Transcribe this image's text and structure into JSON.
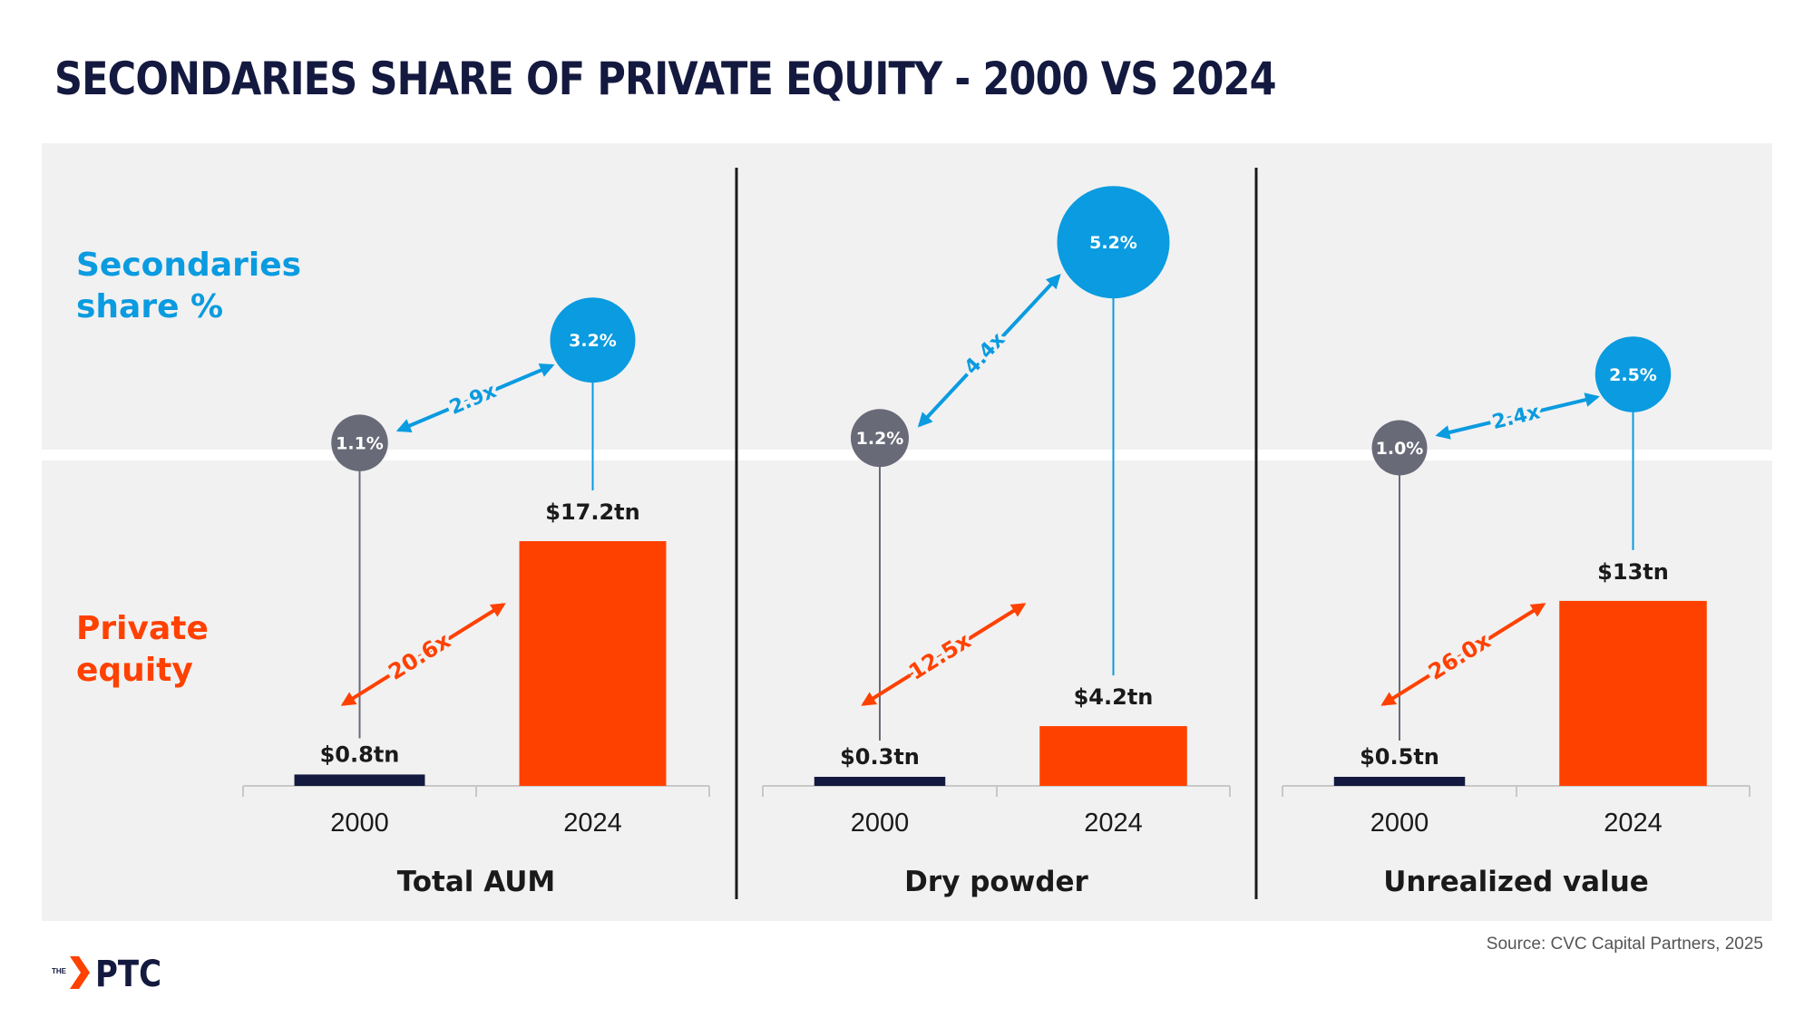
{
  "title": "SECONDARIES SHARE OF PRIVATE EQUITY - 2000 VS 2024",
  "source": "Source: CVC Capital Partners, 2025",
  "logo": {
    "prefix": "THE",
    "name": "PTC"
  },
  "row_labels": {
    "secondaries": [
      "Secondaries",
      "share %"
    ],
    "private_equity": [
      "Private",
      "equity"
    ]
  },
  "colors": {
    "navy": "#14193f",
    "orange": "#ff4100",
    "blue": "#0a9be0",
    "gray_circle": "#696a78",
    "panel_bg": "#f1f1f1"
  },
  "chart_data": [
    {
      "type": "bar",
      "title": "Total AUM",
      "categories": [
        "2000",
        "2024"
      ],
      "values": [
        0.8,
        17.2
      ],
      "value_labels": [
        "$0.8tn",
        "$17.2tn"
      ],
      "multiple": "20.6x",
      "secondaries_share": [
        1.1,
        3.2
      ],
      "secondaries_labels": [
        "1.1%",
        "3.2%"
      ],
      "secondaries_multiple": "2.9x"
    },
    {
      "type": "bar",
      "title": "Dry powder",
      "categories": [
        "2000",
        "2024"
      ],
      "values": [
        0.3,
        4.2
      ],
      "value_labels": [
        "$0.3tn",
        "$4.2tn"
      ],
      "multiple": "12.5x",
      "secondaries_share": [
        1.2,
        5.2
      ],
      "secondaries_labels": [
        "1.2%",
        "5.2%"
      ],
      "secondaries_multiple": "4.4x"
    },
    {
      "type": "bar",
      "title": "Unrealized value",
      "categories": [
        "2000",
        "2024"
      ],
      "values": [
        0.5,
        13
      ],
      "value_labels": [
        "$0.5tn",
        "$13tn"
      ],
      "multiple": "26.0x",
      "secondaries_share": [
        1.0,
        2.5
      ],
      "secondaries_labels": [
        "1.0%",
        "2.5%"
      ],
      "secondaries_multiple": "2.4x"
    }
  ]
}
